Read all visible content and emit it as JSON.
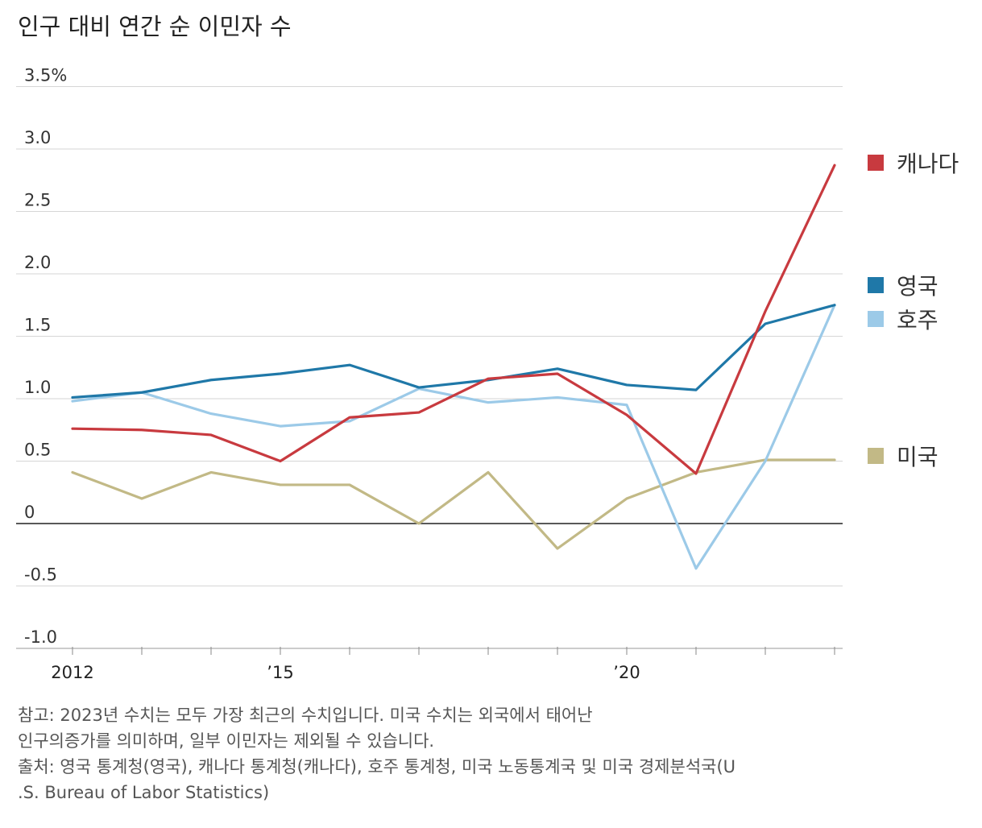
{
  "chart_data": {
    "type": "line",
    "title": "인구 대비 연간 순 이민자 수",
    "x": [
      2012,
      2013,
      2014,
      2015,
      2016,
      2017,
      2018,
      2019,
      2020,
      2021,
      2022,
      2023
    ],
    "x_tick_labels": [
      {
        "x": 2012,
        "label": "2012"
      },
      {
        "x": 2015,
        "label": "’15"
      },
      {
        "x": 2020,
        "label": "’20"
      }
    ],
    "y_tick_labels": [
      {
        "y": 3.5,
        "label": "3.5%"
      },
      {
        "y": 3.0,
        "label": "3.0"
      },
      {
        "y": 2.5,
        "label": "2.5"
      },
      {
        "y": 2.0,
        "label": "2.0"
      },
      {
        "y": 1.5,
        "label": "1.5"
      },
      {
        "y": 1.0,
        "label": "1.0"
      },
      {
        "y": 0.5,
        "label": "0.5"
      },
      {
        "y": 0,
        "label": "0"
      },
      {
        "y": -0.5,
        "label": "-0.5"
      },
      {
        "y": -1.0,
        "label": "-1.0"
      }
    ],
    "ylim": [
      -1.0,
      3.5
    ],
    "grid": true,
    "series": [
      {
        "name": "캐나다",
        "color": "#c83a3f",
        "values": [
          0.76,
          0.75,
          0.71,
          0.5,
          0.85,
          0.89,
          1.16,
          1.2,
          0.87,
          0.4,
          1.7,
          2.87
        ]
      },
      {
        "name": "영국",
        "color": "#1f78a8",
        "values": [
          1.01,
          1.05,
          1.15,
          1.2,
          1.27,
          1.09,
          1.15,
          1.24,
          1.11,
          1.07,
          1.6,
          1.75
        ]
      },
      {
        "name": "호주",
        "color": "#9ccae8",
        "values": [
          0.98,
          1.05,
          0.88,
          0.78,
          0.82,
          1.08,
          0.97,
          1.01,
          0.95,
          -0.36,
          0.5,
          1.75
        ]
      },
      {
        "name": "미국",
        "color": "#c2b986",
        "values": [
          0.41,
          0.2,
          0.41,
          0.31,
          0.31,
          0.0,
          0.41,
          -0.2,
          0.2,
          0.41,
          0.51,
          0.51
        ]
      }
    ]
  },
  "notes": {
    "line1": "참고: 2023년 수치는 모두 가장 최근의 수치입니다. 미국 수치는 외국에서 태어난",
    "line2": "인구의증가를 의미하며, 일부 이민자는 제외될 수 있습니다.",
    "line3": "출처: 영국 통계청(영국), 캐나다 통계청(캐나다), 호주 통계청, 미국 노동통계국 및 미국 경제분석국(U",
    "line4": ".S. Bureau of Labor Statistics)"
  }
}
